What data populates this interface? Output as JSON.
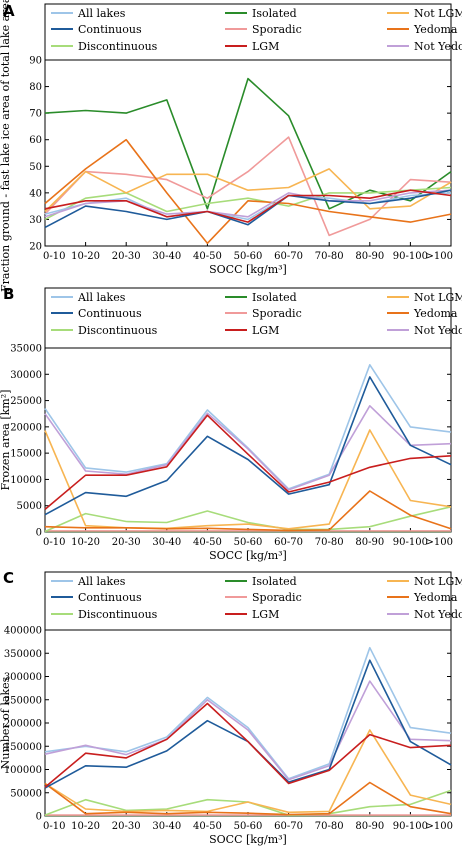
{
  "chart_data": [
    {
      "panel": "A",
      "type": "line",
      "xlabel": "SOCC [kg/m³]",
      "ylabel": "Fraction ground - fast lake ice area of total lake area [%]",
      "categories": [
        "0-10",
        "10-20",
        "20-30",
        "30-40",
        "40-50",
        "50-60",
        "60-70",
        "70-80",
        "80-90",
        "90-100",
        ">100"
      ],
      "ylim": [
        20,
        90
      ],
      "yticks": [
        20,
        30,
        40,
        50,
        60,
        70,
        80,
        90
      ],
      "legend": "top, 3 columns",
      "series": [
        {
          "name": "All lakes",
          "color": "#9ec5e8",
          "values": [
            32,
            36,
            38,
            31,
            33,
            30,
            39,
            38,
            36,
            39,
            40
          ]
        },
        {
          "name": "Continuous",
          "color": "#1f5b9a",
          "values": [
            27,
            35,
            33,
            30,
            33,
            28,
            39,
            37,
            36,
            38,
            41
          ]
        },
        {
          "name": "Discontinuous",
          "color": "#a7dc7a",
          "values": [
            30,
            38,
            40,
            33,
            36,
            38,
            35,
            40,
            40,
            41,
            42
          ]
        },
        {
          "name": "Isolated",
          "color": "#2a8c2a",
          "values": [
            70,
            71,
            70,
            75,
            34,
            83,
            69,
            34,
            41,
            37,
            48
          ]
        },
        {
          "name": "Sporadic",
          "color": "#f09a9a",
          "values": [
            32,
            48,
            47,
            45,
            38,
            48,
            61,
            24,
            30,
            45,
            44
          ]
        },
        {
          "name": "LGM",
          "color": "#c81e1e",
          "values": [
            34,
            37,
            37,
            31,
            33,
            29,
            39,
            39,
            38,
            41,
            39
          ]
        },
        {
          "name": "Not LGM",
          "color": "#f7b552",
          "values": [
            33,
            48,
            40,
            47,
            47,
            41,
            42,
            49,
            34,
            35,
            44
          ]
        },
        {
          "name": "Yedoma",
          "color": "#e8731a",
          "values": [
            36,
            49,
            60,
            40,
            21,
            37,
            36,
            33,
            31,
            29,
            32
          ]
        },
        {
          "name": "Not Yedoma",
          "color": "#c0a0d8",
          "values": [
            31,
            36,
            37,
            32,
            33,
            31,
            40,
            37,
            37,
            40,
            41
          ]
        }
      ]
    },
    {
      "panel": "B",
      "type": "line",
      "xlabel": "SOCC [kg/m³]",
      "ylabel": "Frozen area [km²]",
      "categories": [
        "0-10",
        "10-20",
        "20-30",
        "30-40",
        "40-50",
        "50-60",
        "60-70",
        "70-80",
        "80-90",
        "90-100",
        ">100"
      ],
      "ylim": [
        0,
        35000
      ],
      "yticks": [
        0,
        5000,
        10000,
        15000,
        20000,
        25000,
        30000,
        35000
      ],
      "legend": "top, 3 columns",
      "series": [
        {
          "name": "All lakes",
          "color": "#9ec5e8",
          "values": [
            23500,
            12200,
            11400,
            13000,
            23200,
            16000,
            8200,
            11000,
            31800,
            20000,
            19000
          ]
        },
        {
          "name": "Continuous",
          "color": "#1f5b9a",
          "values": [
            3300,
            7500,
            6800,
            9800,
            18200,
            13800,
            7200,
            9000,
            29500,
            16500,
            12800
          ]
        },
        {
          "name": "Discontinuous",
          "color": "#a7dc7a",
          "values": [
            100,
            3500,
            2000,
            1800,
            4000,
            1800,
            500,
            500,
            1000,
            3000,
            4800
          ]
        },
        {
          "name": "Isolated",
          "color": "#2a8c2a",
          "values": [
            100,
            100,
            100,
            100,
            100,
            100,
            100,
            100,
            100,
            100,
            100
          ]
        },
        {
          "name": "Sporadic",
          "color": "#f09a9a",
          "values": [
            200,
            200,
            200,
            200,
            200,
            200,
            200,
            200,
            200,
            200,
            200
          ]
        },
        {
          "name": "LGM",
          "color": "#c81e1e",
          "values": [
            4300,
            10800,
            10800,
            12400,
            22200,
            14800,
            7600,
            9500,
            12300,
            14000,
            14500
          ]
        },
        {
          "name": "Not LGM",
          "color": "#f7b552",
          "values": [
            19300,
            1200,
            800,
            700,
            1200,
            1500,
            600,
            1500,
            19400,
            6000,
            4800
          ]
        },
        {
          "name": "Yedoma",
          "color": "#e8731a",
          "values": [
            1000,
            800,
            800,
            600,
            700,
            500,
            300,
            400,
            7800,
            3200,
            600
          ]
        },
        {
          "name": "Not Yedoma",
          "color": "#c0a0d8",
          "values": [
            22500,
            11600,
            11000,
            12800,
            22600,
            15800,
            8000,
            10800,
            24000,
            16500,
            16800
          ]
        }
      ]
    },
    {
      "panel": "C",
      "type": "line",
      "xlabel": "SOCC [kg/m³]",
      "ylabel": "Number of lakes",
      "categories": [
        "0-10",
        "10-20",
        "20-30",
        "30-40",
        "40-50",
        "50-60",
        "60-70",
        "70-80",
        "80-90",
        "90-100",
        ">100"
      ],
      "ylim": [
        0,
        400000
      ],
      "yticks": [
        0,
        50000,
        100000,
        150000,
        200000,
        250000,
        300000,
        350000,
        400000
      ],
      "legend": "top, 3 columns",
      "series": [
        {
          "name": "All lakes",
          "color": "#9ec5e8",
          "values": [
            138000,
            150000,
            138000,
            170000,
            255000,
            190000,
            80000,
            112000,
            362000,
            190000,
            178000
          ]
        },
        {
          "name": "Continuous",
          "color": "#1f5b9a",
          "values": [
            60000,
            108000,
            105000,
            140000,
            205000,
            160000,
            73000,
            100000,
            335000,
            160000,
            110000
          ]
        },
        {
          "name": "Discontinuous",
          "color": "#a7dc7a",
          "values": [
            2000,
            35000,
            12000,
            15000,
            35000,
            30000,
            2000,
            5000,
            20000,
            25000,
            55000
          ]
        },
        {
          "name": "Isolated",
          "color": "#2a8c2a",
          "values": [
            1000,
            1000,
            1000,
            1000,
            1000,
            1000,
            1000,
            1000,
            1000,
            1000,
            1000
          ]
        },
        {
          "name": "Sporadic",
          "color": "#f09a9a",
          "values": [
            2000,
            2000,
            2000,
            2000,
            2000,
            2000,
            2000,
            2000,
            2000,
            2000,
            2000
          ]
        },
        {
          "name": "LGM",
          "color": "#c81e1e",
          "values": [
            62000,
            135000,
            125000,
            165000,
            242000,
            160000,
            70000,
            98000,
            175000,
            147000,
            152000
          ]
        },
        {
          "name": "Not LGM",
          "color": "#f7b552",
          "values": [
            70000,
            15000,
            10000,
            12000,
            10000,
            30000,
            8000,
            10000,
            185000,
            45000,
            25000
          ]
        },
        {
          "name": "Yedoma",
          "color": "#e8731a",
          "values": [
            70000,
            5000,
            8000,
            5000,
            8000,
            6000,
            3000,
            5000,
            72000,
            20000,
            5000
          ]
        },
        {
          "name": "Not Yedoma",
          "color": "#c0a0d8",
          "values": [
            133000,
            152000,
            132000,
            165000,
            250000,
            185000,
            78000,
            108000,
            290000,
            165000,
            162000
          ]
        }
      ]
    }
  ]
}
